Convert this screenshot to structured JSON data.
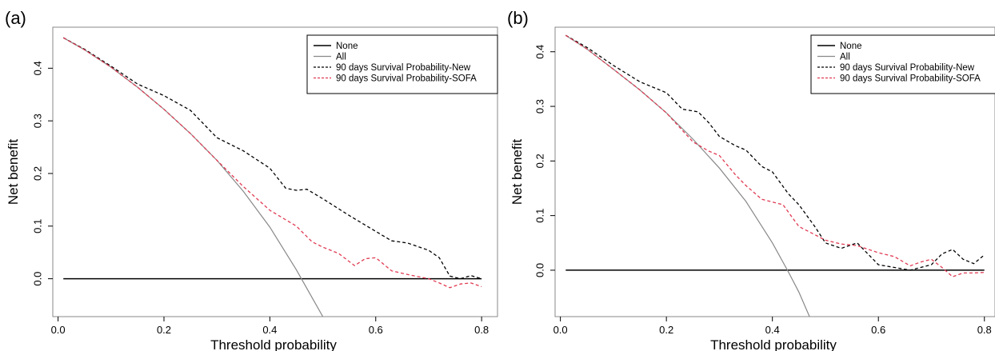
{
  "chart_data": [
    {
      "panel_label": "(a)",
      "type": "line",
      "xlabel": "Threshold probability",
      "ylabel": "Net benefit",
      "xlim": [
        -0.01,
        0.83
      ],
      "ylim": [
        -0.072,
        0.478
      ],
      "xticks": [
        0.0,
        0.2,
        0.4,
        0.6,
        0.8
      ],
      "yticks": [
        0.0,
        0.1,
        0.2,
        0.3,
        0.4
      ],
      "xtick_labels": [
        "0.0",
        "0.2",
        "0.4",
        "0.6",
        "0.8"
      ],
      "ytick_labels": [
        "0.0",
        "0.1",
        "0.2",
        "0.3",
        "0.4"
      ],
      "grid": false,
      "legend_position": "top-right",
      "series": [
        {
          "name": "None",
          "color": "#000000",
          "dash": "solid",
          "x": [
            0.01,
            0.8
          ],
          "y": [
            0.0,
            0.0
          ]
        },
        {
          "name": "All",
          "color": "#888888",
          "dash": "solid",
          "x": [
            0.01,
            0.05,
            0.1,
            0.15,
            0.2,
            0.25,
            0.3,
            0.35,
            0.4,
            0.45,
            0.5
          ],
          "y": [
            0.458,
            0.435,
            0.402,
            0.364,
            0.322,
            0.276,
            0.225,
            0.166,
            0.098,
            0.017,
            -0.072
          ]
        },
        {
          "name": "90 days Survival Probability-New",
          "color": "#000000",
          "dash": "dashed",
          "x": [
            0.01,
            0.05,
            0.1,
            0.15,
            0.2,
            0.25,
            0.3,
            0.35,
            0.4,
            0.43,
            0.45,
            0.47,
            0.5,
            0.55,
            0.6,
            0.63,
            0.66,
            0.7,
            0.72,
            0.74,
            0.76,
            0.78,
            0.8
          ],
          "y": [
            0.458,
            0.436,
            0.404,
            0.37,
            0.348,
            0.32,
            0.268,
            0.243,
            0.21,
            0.172,
            0.168,
            0.17,
            0.152,
            0.12,
            0.09,
            0.072,
            0.068,
            0.054,
            0.04,
            0.005,
            0.0,
            0.006,
            0.0
          ]
        },
        {
          "name": "90 days Survival Probability-SOFA",
          "color": "#e03a52",
          "dash": "dashed",
          "x": [
            0.01,
            0.05,
            0.1,
            0.15,
            0.2,
            0.25,
            0.3,
            0.35,
            0.4,
            0.45,
            0.48,
            0.5,
            0.53,
            0.56,
            0.58,
            0.6,
            0.63,
            0.66,
            0.7,
            0.72,
            0.74,
            0.76,
            0.78,
            0.8
          ],
          "y": [
            0.458,
            0.435,
            0.402,
            0.364,
            0.322,
            0.276,
            0.225,
            0.175,
            0.13,
            0.1,
            0.07,
            0.06,
            0.048,
            0.025,
            0.038,
            0.04,
            0.015,
            0.008,
            0.0,
            -0.008,
            -0.017,
            -0.01,
            -0.008,
            -0.015
          ]
        }
      ]
    },
    {
      "panel_label": "(b)",
      "type": "line",
      "xlabel": "Threshold probability",
      "ylabel": "Net benefit",
      "xlim": [
        -0.01,
        0.82
      ],
      "ylim": [
        -0.085,
        0.445
      ],
      "xticks": [
        0.0,
        0.2,
        0.4,
        0.6,
        0.8
      ],
      "yticks": [
        0.0,
        0.1,
        0.2,
        0.3,
        0.4
      ],
      "xtick_labels": [
        "0.0",
        "0.2",
        "0.4",
        "0.6",
        "0.8"
      ],
      "ytick_labels": [
        "0.0",
        "0.1",
        "0.2",
        "0.3",
        "0.4"
      ],
      "grid": false,
      "legend_position": "top-right",
      "series": [
        {
          "name": "None",
          "color": "#000000",
          "dash": "solid",
          "x": [
            0.01,
            0.8
          ],
          "y": [
            0.0,
            0.0
          ]
        },
        {
          "name": "All",
          "color": "#888888",
          "dash": "solid",
          "x": [
            0.01,
            0.05,
            0.1,
            0.15,
            0.2,
            0.25,
            0.3,
            0.35,
            0.4,
            0.43,
            0.45,
            0.47
          ],
          "y": [
            0.43,
            0.405,
            0.368,
            0.33,
            0.288,
            0.24,
            0.187,
            0.126,
            0.05,
            -0.003,
            -0.04,
            -0.085
          ]
        },
        {
          "name": "90 days Survival Probability-New",
          "color": "#000000",
          "dash": "dashed",
          "x": [
            0.01,
            0.05,
            0.1,
            0.15,
            0.2,
            0.23,
            0.26,
            0.28,
            0.3,
            0.33,
            0.35,
            0.38,
            0.4,
            0.43,
            0.45,
            0.48,
            0.5,
            0.53,
            0.56,
            0.58,
            0.6,
            0.63,
            0.66,
            0.7,
            0.72,
            0.74,
            0.76,
            0.78,
            0.8
          ],
          "y": [
            0.43,
            0.408,
            0.375,
            0.345,
            0.325,
            0.295,
            0.29,
            0.27,
            0.245,
            0.228,
            0.22,
            0.19,
            0.18,
            0.14,
            0.12,
            0.08,
            0.05,
            0.04,
            0.05,
            0.03,
            0.01,
            0.005,
            0.0,
            0.01,
            0.03,
            0.038,
            0.02,
            0.012,
            0.028
          ]
        },
        {
          "name": "90 days Survival Probability-SOFA",
          "color": "#e03a52",
          "dash": "dashed",
          "x": [
            0.01,
            0.05,
            0.1,
            0.15,
            0.2,
            0.25,
            0.28,
            0.3,
            0.33,
            0.35,
            0.38,
            0.4,
            0.42,
            0.45,
            0.48,
            0.5,
            0.53,
            0.56,
            0.6,
            0.63,
            0.66,
            0.68,
            0.7,
            0.72,
            0.74,
            0.76,
            0.78,
            0.8
          ],
          "y": [
            0.43,
            0.405,
            0.368,
            0.33,
            0.288,
            0.235,
            0.218,
            0.21,
            0.175,
            0.155,
            0.13,
            0.125,
            0.12,
            0.08,
            0.065,
            0.055,
            0.048,
            0.045,
            0.032,
            0.025,
            0.008,
            0.015,
            0.02,
            0.005,
            -0.012,
            -0.005,
            -0.005,
            -0.004
          ]
        }
      ]
    }
  ]
}
